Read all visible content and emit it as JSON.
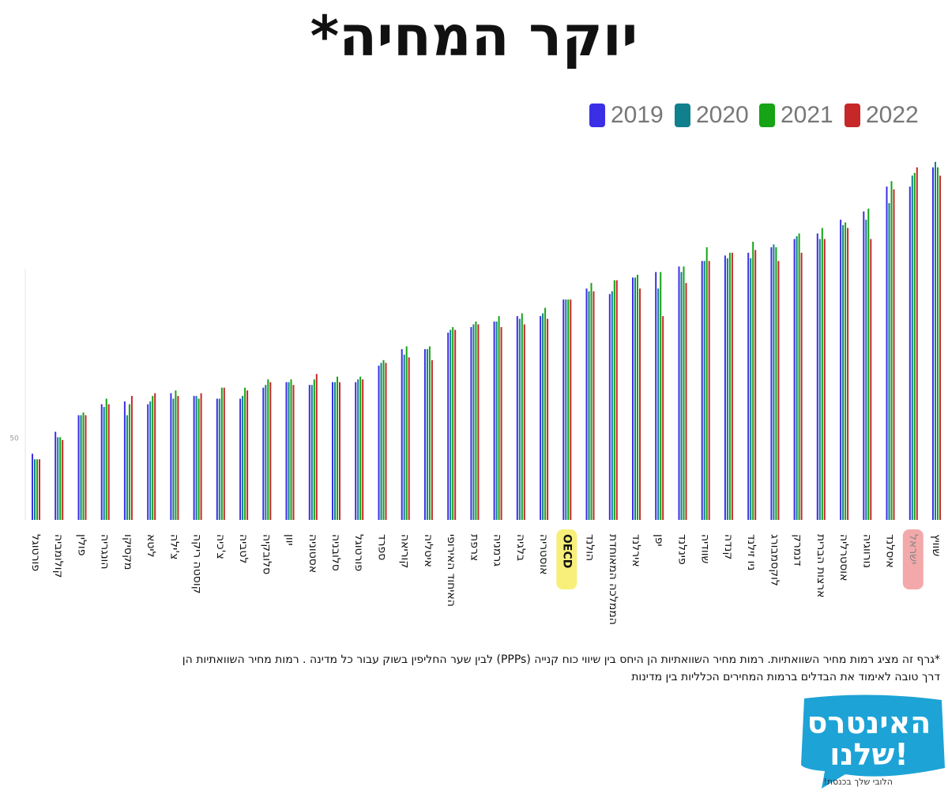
{
  "header": {
    "title": "יוקר המחיה*"
  },
  "colors": {
    "2019": "#3a2fe6",
    "2020": "#10808e",
    "2021": "#16a316",
    "2022": "#c62828",
    "oecd_highlight": "#f7ef7a",
    "israel_highlight": "#f3a9a9",
    "logo": "#1da3d6"
  },
  "chart_data": {
    "type": "bar",
    "title": "",
    "xlabel": "",
    "ylabel": "",
    "ytick_labels": [
      "50"
    ],
    "ylim": [
      20,
      160
    ],
    "legend_position": "top-right",
    "categories": [
      "פורטוגל",
      "קולומביה",
      "פולין",
      "הונגריה",
      "מקסיקו",
      "ליטא",
      "צ'ילה",
      "קוסטה ריקה",
      "צ'כיה",
      "לטביה",
      "סלובקיה",
      "יוון",
      "אסטוניה",
      "סלובניה",
      "פורטוגל",
      "ספרד",
      "קוריאה",
      "איטליה",
      "האיחוד האירופי",
      "צרפת",
      "גרמניה",
      "בלגיה",
      "אוסטריה",
      "OECD",
      "הולנד",
      "הממלכה המאוחדת",
      "אירלנד",
      "יפן",
      "פינלנד",
      "שוודיה",
      "קנדה",
      "ניו זילנד",
      "לוקסמבורג",
      "דנמרק",
      "ארצות הברית",
      "אוסטרליה",
      "נורווגיה",
      "איסלנד",
      "ישראל",
      "שוויץ"
    ],
    "highlights": {
      "OECD": "yellow",
      "ישראל": "red"
    },
    "series": [
      {
        "name": "2019",
        "values": [
          44,
          52,
          58,
          62,
          63,
          62,
          66,
          65,
          64,
          64,
          68,
          70,
          69,
          70,
          70,
          76,
          82,
          82,
          88,
          90,
          92,
          94,
          94,
          100,
          104,
          102,
          108,
          110,
          112,
          114,
          116,
          117,
          119,
          122,
          124,
          129,
          132,
          141,
          141,
          148
        ]
      },
      {
        "name": "2020",
        "values": [
          42,
          50,
          58,
          61,
          58,
          63,
          64,
          65,
          64,
          65,
          69,
          70,
          69,
          70,
          71,
          77,
          80,
          82,
          89,
          91,
          92,
          93,
          95,
          100,
          103,
          103,
          108,
          104,
          110,
          114,
          115,
          115,
          120,
          123,
          122,
          127,
          129,
          135,
          145,
          150
        ]
      },
      {
        "name": "2021",
        "values": [
          42,
          50,
          59,
          64,
          62,
          65,
          67,
          64,
          68,
          68,
          71,
          71,
          71,
          72,
          72,
          78,
          83,
          83,
          90,
          92,
          94,
          95,
          97,
          100,
          106,
          107,
          109,
          110,
          112,
          119,
          117,
          121,
          119,
          124,
          126,
          128,
          133,
          143,
          146,
          148
        ]
      },
      {
        "name": "2022",
        "values": [
          42,
          49,
          58,
          62,
          65,
          66,
          65,
          66,
          68,
          67,
          70,
          69,
          73,
          70,
          71,
          77,
          79,
          78,
          89,
          91,
          90,
          91,
          93,
          100,
          103,
          107,
          104,
          94,
          106,
          114,
          117,
          118,
          114,
          117,
          122,
          126,
          122,
          140,
          148,
          145
        ]
      }
    ]
  },
  "footnote": {
    "line1": "*גרף זה מציג רמות מחיר השוואתיות. רמות מחיר השוואתיות הן היחס בין שיווי כוח קנייה (PPPs) לבין שער החליפין בשוק עבור כל מדינה . רמות מחיר השוואתיות הן",
    "line2": "דרך טובה לאימוד את הבדלים ברמות המחירים הכלליות בין מדינות"
  },
  "logo": {
    "line1": "האינטרס",
    "line2": "שלנו!",
    "tagline": "הלובי שלך בכנסת!"
  }
}
